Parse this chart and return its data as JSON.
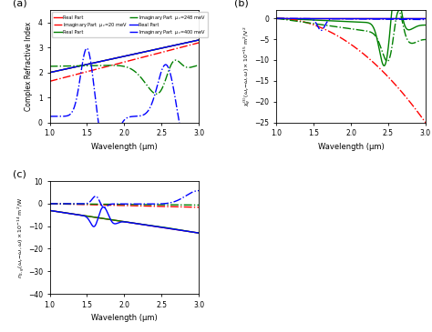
{
  "xlabel": "Wavelength (μm)",
  "ylabel_a": "Complex Refractive Index",
  "xlim": [
    1.0,
    3.0
  ],
  "ylim_a": [
    0,
    4.5
  ],
  "ylim_b": [
    -25,
    2
  ],
  "ylim_c": [
    -40,
    10
  ],
  "colors": [
    "red",
    "green",
    "blue"
  ],
  "mu_labels": [
    "μ_c=20 meV",
    "μ_c=248 meV",
    "μ_c=400 meV"
  ],
  "xticks": [
    1.0,
    1.5,
    2.0,
    2.5,
    3.0
  ],
  "yticks_a": [
    0,
    1,
    2,
    3,
    4
  ],
  "yticks_b": [
    -25,
    -20,
    -15,
    -10,
    -5,
    0
  ],
  "yticks_c": [
    -40,
    -30,
    -20,
    -10,
    0,
    10
  ]
}
